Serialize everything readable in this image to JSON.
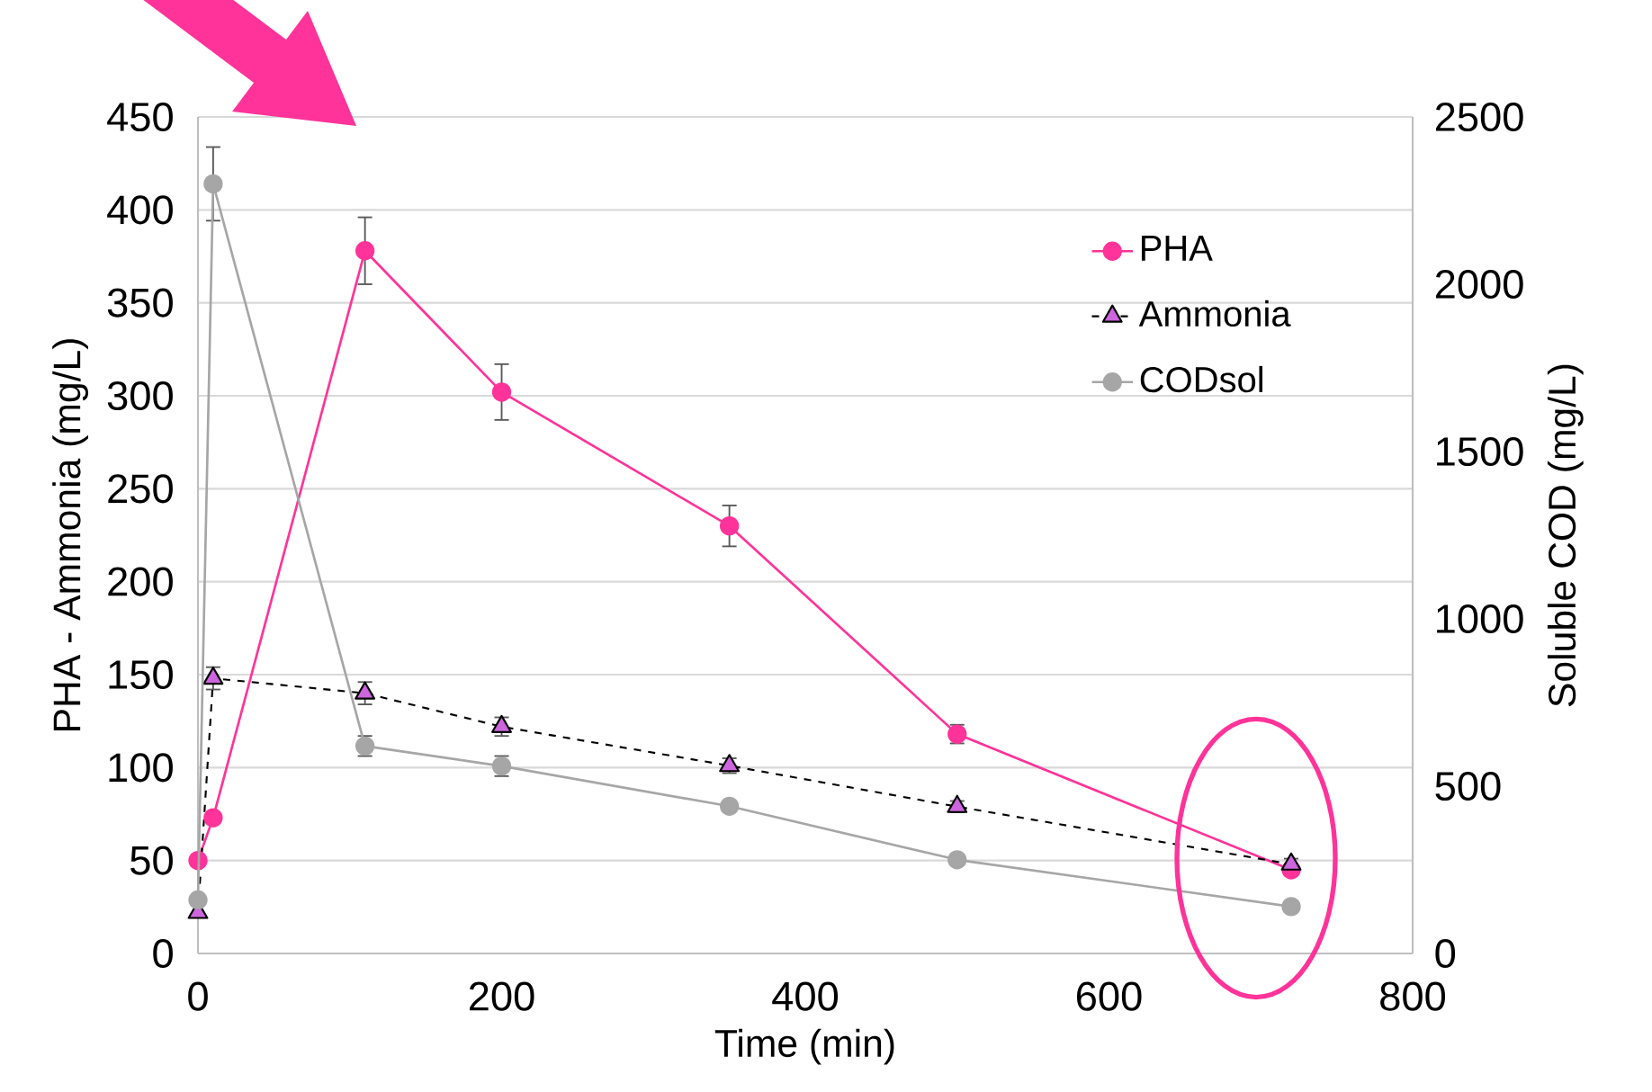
{
  "chart_data": {
    "type": "line",
    "xlabel": "Time (min)",
    "ylabel": "PHA - Ammonia (mg/L)",
    "y2label": "Soluble COD (mg/L)",
    "x": [
      0,
      10,
      110,
      200,
      350,
      500,
      720
    ],
    "xlim": [
      0,
      800
    ],
    "xticks": [
      0,
      200,
      400,
      600,
      800
    ],
    "ylim": [
      0,
      450
    ],
    "yticks": [
      0,
      50,
      100,
      150,
      200,
      250,
      300,
      350,
      400,
      450
    ],
    "y2lim": [
      0,
      2500
    ],
    "y2ticks": [
      0,
      500,
      1000,
      1500,
      2000,
      2500
    ],
    "grid": "y",
    "legend": "top right",
    "series": [
      {
        "name": "PHA",
        "color": "#ff3399",
        "marker": "circle",
        "line_style": "solid",
        "values": [
          50,
          73,
          378,
          302,
          230,
          118,
          45
        ],
        "errors": [
          null,
          null,
          18,
          15,
          11,
          5,
          null
        ]
      },
      {
        "name": "Ammonia",
        "color": "#cc66dd",
        "marker": "triangle",
        "line_style": "dashed",
        "values": [
          22,
          148,
          140,
          122,
          101,
          79,
          48
        ],
        "errors": [
          null,
          6,
          6,
          5,
          4,
          3,
          3
        ]
      },
      {
        "name": "CODsol",
        "color": "#a6a6a6",
        "marker": "circle",
        "line_style": "solid",
        "axis": "y2",
        "values": [
          160,
          2300,
          620,
          560,
          440,
          280,
          140
        ],
        "errors": [
          null,
          110,
          30,
          30,
          null,
          null,
          null
        ]
      }
    ]
  }
}
